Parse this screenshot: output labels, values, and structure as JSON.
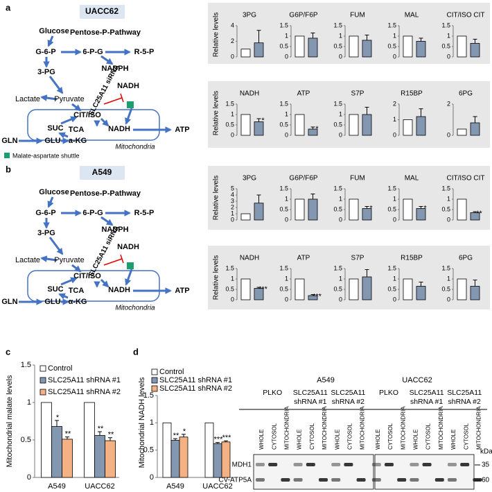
{
  "panel_labels": [
    "a",
    "b",
    "c",
    "d"
  ],
  "diagrams": [
    {
      "nodes": [
        "UACC62",
        "Glucose",
        "Pentose-P-Pathway",
        "G-6-P",
        "6-P-G",
        "R-5-P",
        "NADPH",
        "3-PG",
        "Lactate",
        "Pyruvate",
        "SLC25A11 siRNA",
        "NADH",
        "CIT/ISO",
        "SUC",
        "TCA",
        "NADH",
        "ATP",
        "GLN",
        "GLU",
        "a-KG",
        "Mitochondria"
      ],
      "legend": "Malate-aspartate shuttle"
    },
    {
      "nodes": [
        "A549",
        "Glucose",
        "Pentose-P-Pathway",
        "G-6-P",
        "6-P-G",
        "R-5-P",
        "NADPH",
        "3-PG",
        "Lactate",
        "Pyruvate",
        "SLC25A11 siRNA",
        "NADH",
        "CIT/ISO",
        "SUC",
        "TCA",
        "NADH",
        "ATP",
        "GLN",
        "GLU",
        "α-KG",
        "Mitochondria"
      ]
    }
  ],
  "chart_data": [
    {
      "type": "bar",
      "title": "3PG",
      "ylabel": "Relative levels",
      "values": [
        1,
        1.8
      ],
      "errors": [
        null,
        1.6
      ],
      "stars": [
        null,
        null
      ],
      "colors": [
        "#ffffff",
        "#8497b0"
      ],
      "ylim": [
        0,
        4
      ],
      "yticks": [
        0,
        2,
        4
      ]
    },
    {
      "type": "bar",
      "title": "G6P/F6P",
      "values": [
        1,
        0.9
      ],
      "errors": [
        null,
        0.25
      ],
      "stars": [
        null,
        null
      ],
      "colors": [
        "#ffffff",
        "#8497b0"
      ],
      "ylim": [
        0,
        1.5
      ],
      "yticks": [
        0,
        0.5,
        1,
        1.5
      ]
    },
    {
      "type": "bar",
      "title": "FUM",
      "values": [
        1,
        0.8
      ],
      "errors": [
        null,
        0.25
      ],
      "stars": [
        null,
        null
      ],
      "colors": [
        "#ffffff",
        "#8497b0"
      ],
      "ylim": [
        0,
        1.5
      ],
      "yticks": [
        0,
        0.5,
        1,
        1.5
      ]
    },
    {
      "type": "bar",
      "title": "MAL",
      "values": [
        1,
        0.75
      ],
      "errors": [
        null,
        0.15
      ],
      "stars": [
        null,
        null
      ],
      "colors": [
        "#ffffff",
        "#8497b0"
      ],
      "ylim": [
        0,
        1.5
      ],
      "yticks": [
        0,
        0.5,
        1,
        1.5
      ]
    },
    {
      "type": "bar",
      "title": "CIT/ISO CIT",
      "values": [
        1,
        0.65
      ],
      "errors": [
        null,
        0.2
      ],
      "stars": [
        null,
        null
      ],
      "colors": [
        "#ffffff",
        "#8497b0"
      ],
      "ylim": [
        0,
        1.5
      ],
      "yticks": [
        0,
        0.5,
        1,
        1.5
      ]
    },
    {
      "type": "bar",
      "title": "NADH",
      "ylabel": "Relative levels",
      "values": [
        1,
        0.65
      ],
      "errors": [
        null,
        0.15
      ],
      "stars": [
        null,
        "*"
      ],
      "colors": [
        "#ffffff",
        "#8497b0"
      ],
      "ylim": [
        0,
        1.5
      ],
      "yticks": [
        0,
        0.5,
        1,
        1.5
      ]
    },
    {
      "type": "bar",
      "title": "ATP",
      "values": [
        1,
        0.3
      ],
      "errors": [
        null,
        0.1
      ],
      "stars": [
        null,
        "*"
      ],
      "colors": [
        "#ffffff",
        "#8497b0"
      ],
      "ylim": [
        0,
        1.5
      ],
      "yticks": [
        0,
        0.5,
        1,
        1.5
      ]
    },
    {
      "type": "bar",
      "title": "S7P",
      "values": [
        1,
        1
      ],
      "errors": [
        null,
        0.35
      ],
      "stars": [
        null,
        null
      ],
      "colors": [
        "#ffffff",
        "#8497b0"
      ],
      "ylim": [
        0,
        1.5
      ],
      "yticks": [
        0,
        0.5,
        1,
        1.5
      ]
    },
    {
      "type": "bar",
      "title": "R15BP",
      "values": [
        1,
        1.2
      ],
      "errors": [
        null,
        0.5
      ],
      "stars": [
        null,
        null
      ],
      "colors": [
        "#ffffff",
        "#8497b0"
      ],
      "ylim": [
        0,
        2
      ],
      "yticks": [
        0,
        1,
        2
      ]
    },
    {
      "type": "bar",
      "title": "6PG",
      "values": [
        0.4,
        0.8
      ],
      "errors": [
        null,
        0.4
      ],
      "stars": [
        null,
        null
      ],
      "colors": [
        "#ffffff",
        "#8497b0"
      ],
      "ylim": [
        0,
        2
      ],
      "yticks": [
        0,
        2
      ]
    },
    {
      "type": "bar",
      "title": "3PG",
      "ylabel": "Relative levels",
      "values": [
        1,
        2.7
      ],
      "errors": [
        null,
        1.3
      ],
      "stars": [
        null,
        null
      ],
      "colors": [
        "#ffffff",
        "#8497b0"
      ],
      "ylim": [
        0,
        5
      ],
      "yticks": [
        0,
        1,
        2,
        3,
        4,
        5
      ]
    },
    {
      "type": "bar",
      "title": "G6P/F6P",
      "values": [
        1,
        1
      ],
      "errors": [
        null,
        0.25
      ],
      "stars": [
        null,
        null
      ],
      "colors": [
        "#ffffff",
        "#8497b0"
      ],
      "ylim": [
        0,
        1.5
      ],
      "yticks": [
        0,
        0.5,
        1,
        1.5
      ]
    },
    {
      "type": "bar",
      "title": "FUM",
      "values": [
        1,
        0.55
      ],
      "errors": [
        null,
        0.1
      ],
      "stars": [
        null,
        "*"
      ],
      "colors": [
        "#ffffff",
        "#8497b0"
      ],
      "ylim": [
        0,
        1.5
      ],
      "yticks": [
        0,
        0.5,
        1,
        1.5
      ]
    },
    {
      "type": "bar",
      "title": "MAL",
      "values": [
        1,
        0.55
      ],
      "errors": [
        null,
        0.1
      ],
      "stars": [
        null,
        "*"
      ],
      "colors": [
        "#ffffff",
        "#8497b0"
      ],
      "ylim": [
        0,
        1.5
      ],
      "yticks": [
        0,
        0.5,
        1,
        1.5
      ]
    },
    {
      "type": "bar",
      "title": "CIT/ISO CIT",
      "values": [
        1,
        0.35
      ],
      "errors": [
        null,
        0.05
      ],
      "stars": [
        null,
        "**"
      ],
      "colors": [
        "#ffffff",
        "#8497b0"
      ],
      "ylim": [
        0,
        1.5
      ],
      "yticks": [
        0,
        0.5,
        1,
        1.5
      ]
    },
    {
      "type": "bar",
      "title": "NADH",
      "ylabel": "Relative levels",
      "values": [
        1,
        0.55
      ],
      "errors": [
        null,
        0.05
      ],
      "stars": [
        null,
        "***"
      ],
      "colors": [
        "#ffffff",
        "#8497b0"
      ],
      "ylim": [
        0,
        1.5
      ],
      "yticks": [
        0,
        0.5,
        1,
        1.5
      ]
    },
    {
      "type": "bar",
      "title": "ATP",
      "values": [
        1,
        0.2
      ],
      "errors": [
        null,
        0.05
      ],
      "stars": [
        null,
        "***"
      ],
      "colors": [
        "#ffffff",
        "#8497b0"
      ],
      "ylim": [
        0,
        1.5
      ],
      "yticks": [
        0,
        0.5,
        1,
        1.5
      ]
    },
    {
      "type": "bar",
      "title": "S7P",
      "values": [
        1,
        1.1
      ],
      "errors": [
        null,
        0.35
      ],
      "stars": [
        null,
        null
      ],
      "colors": [
        "#ffffff",
        "#8497b0"
      ],
      "ylim": [
        0,
        1.5
      ],
      "yticks": [
        0,
        0.5,
        1,
        1.5
      ]
    },
    {
      "type": "bar",
      "title": "R15BP",
      "values": [
        1,
        0.65
      ],
      "errors": [
        null,
        0.2
      ],
      "stars": [
        null,
        null
      ],
      "colors": [
        "#ffffff",
        "#8497b0"
      ],
      "ylim": [
        0,
        1.5
      ],
      "yticks": [
        0,
        0.5,
        1,
        1.5
      ]
    },
    {
      "type": "bar",
      "title": "6PG",
      "values": [
        1,
        0.65
      ],
      "errors": [
        null,
        0.3
      ],
      "stars": [
        null,
        null
      ],
      "colors": [
        "#ffffff",
        "#8497b0"
      ],
      "ylim": [
        0,
        1.5
      ],
      "yticks": [
        0,
        0.5,
        1,
        1.5
      ]
    },
    {
      "type": "grouped-bar",
      "ylabel": "Mitochondrial malate levels",
      "categories": [
        "A549",
        "UACC62"
      ],
      "ylim": [
        0,
        1.5
      ],
      "yticks": [
        0,
        0.5,
        1,
        1.5
      ],
      "series": [
        {
          "name": "Control",
          "color": "#ffffff",
          "values": [
            1,
            1
          ],
          "errors": [
            null,
            null
          ],
          "stars": [
            null,
            null
          ]
        },
        {
          "name": "SLC25A11 shRNA #1",
          "color": "#8497b0",
          "values": [
            0.68,
            0.56
          ],
          "errors": [
            0.08,
            0.05
          ],
          "stars": [
            "*",
            "**"
          ]
        },
        {
          "name": "SLC25A11 shRNA #2",
          "color": "#f4b183",
          "values": [
            0.51,
            0.49
          ],
          "errors": [
            0.03,
            0.04
          ],
          "stars": [
            "**",
            "**"
          ]
        }
      ]
    },
    {
      "type": "grouped-bar",
      "ylabel": "Mitochondrial NADH levels",
      "categories": [
        "A549",
        "UACC62"
      ],
      "ylim": [
        0,
        1.5
      ],
      "yticks": [
        0,
        0.5,
        1,
        1.5
      ],
      "series": [
        {
          "name": "Control",
          "color": "#ffffff",
          "values": [
            1,
            1
          ],
          "errors": [
            null,
            null
          ],
          "stars": [
            null,
            null
          ]
        },
        {
          "name": "SLC25A11 shRNA #1",
          "color": "#8497b0",
          "values": [
            0.68,
            0.62
          ],
          "errors": [
            0.03,
            0.02
          ],
          "stars": [
            "**",
            "***"
          ]
        },
        {
          "name": "SLC25A11 shRNA #2",
          "color": "#f4b183",
          "values": [
            0.74,
            0.65
          ],
          "errors": [
            0.05,
            0.02
          ],
          "stars": [
            "*",
            "***"
          ]
        }
      ]
    }
  ],
  "blot": {
    "cell_lines": [
      "A549",
      "UACC62"
    ],
    "groups": [
      [
        [
          "PLKO"
        ],
        [
          "SLC25A11",
          "shRNA #1"
        ],
        [
          "SLC25A11",
          "shRNA #2"
        ]
      ],
      [
        [
          "PLKO"
        ],
        [
          "SLC25A11",
          "shRNA #1"
        ],
        [
          "SLC25A11",
          "shRNA #2"
        ]
      ]
    ],
    "lanes": [
      "WHOLE",
      "CYTOSOL",
      "MITOCHONDRIA",
      "WHOLE",
      "CYTOSOL",
      "MITOCHONDRIA",
      "WHOLE",
      "CYTOSOL",
      "MITOCHONDRIA",
      "WHOLE",
      "CYTOSOL",
      "MITOCHONDRIA",
      "WHOLE",
      "CYTOSOL",
      "MITOCHONDRIA",
      "WHOLE",
      "CYTOSOL",
      "MITOCHONDRIA"
    ],
    "rows": [
      "MDH1",
      "CV-ATP5A"
    ],
    "kda_label": "kDa",
    "markers": [
      35,
      60
    ]
  }
}
